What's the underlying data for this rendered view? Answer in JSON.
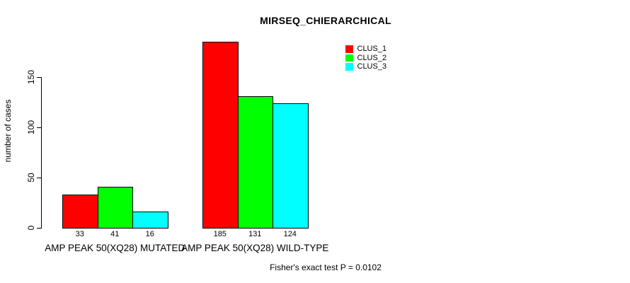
{
  "chart_data": {
    "type": "bar",
    "title": "MIRSEQ_CHIERARCHICAL",
    "xlabel": "",
    "ylabel": "number of cases",
    "ylim": [
      0,
      190
    ],
    "yticks": [
      0,
      50,
      100,
      150
    ],
    "grid": false,
    "legend_position": "top-right",
    "categories": [
      "AMP PEAK 50(XQ28) MUTATED",
      "AMP PEAK 50(XQ28) WILD-TYPE"
    ],
    "series": [
      {
        "name": "CLUS_1",
        "color": "#FF0000",
        "values": [
          33,
          185
        ]
      },
      {
        "name": "CLUS_2",
        "color": "#00FF00",
        "values": [
          41,
          131
        ]
      },
      {
        "name": "CLUS_3",
        "color": "#00FFFF",
        "values": [
          16,
          124
        ]
      }
    ],
    "bar_value_labels": [
      [
        33,
        41,
        16
      ],
      [
        185,
        131,
        124
      ]
    ],
    "bar_border_color": "#000000",
    "axis_color": "#000000",
    "annotation": "Fisher's exact test P = 0.0102"
  }
}
